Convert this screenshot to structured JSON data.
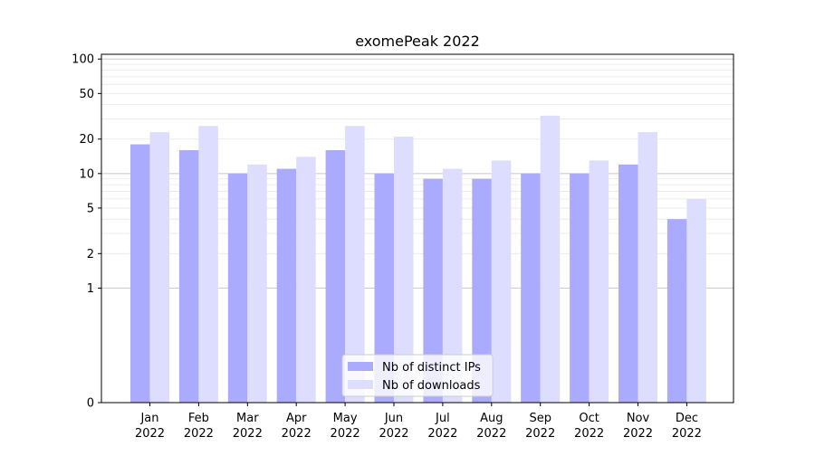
{
  "chart_data": {
    "type": "bar",
    "title": "exomePeak 2022",
    "xlabel": "",
    "ylabel": "",
    "y_scale": "symlog",
    "ylim": [
      0,
      110
    ],
    "y_ticks": [
      0,
      1,
      2,
      5,
      10,
      20,
      50,
      100
    ],
    "y_tick_labels": [
      "0",
      "1",
      "2",
      "5",
      "10",
      "20",
      "50",
      "100"
    ],
    "grid": true,
    "legend_position": "bottom-center",
    "categories": [
      {
        "month": "Jan",
        "year": "2022"
      },
      {
        "month": "Feb",
        "year": "2022"
      },
      {
        "month": "Mar",
        "year": "2022"
      },
      {
        "month": "Apr",
        "year": "2022"
      },
      {
        "month": "May",
        "year": "2022"
      },
      {
        "month": "Jun",
        "year": "2022"
      },
      {
        "month": "Jul",
        "year": "2022"
      },
      {
        "month": "Aug",
        "year": "2022"
      },
      {
        "month": "Sep",
        "year": "2022"
      },
      {
        "month": "Oct",
        "year": "2022"
      },
      {
        "month": "Nov",
        "year": "2022"
      },
      {
        "month": "Dec",
        "year": "2022"
      }
    ],
    "series": [
      {
        "name": "Nb of distinct IPs",
        "color": "#aaaaff",
        "values": [
          18,
          16,
          10,
          11,
          16,
          10,
          9,
          9,
          10,
          10,
          12,
          4
        ]
      },
      {
        "name": "Nb of downloads",
        "color": "#ddddff",
        "values": [
          23,
          26,
          12,
          14,
          26,
          21,
          11,
          13,
          32,
          13,
          23,
          6
        ]
      }
    ]
  }
}
